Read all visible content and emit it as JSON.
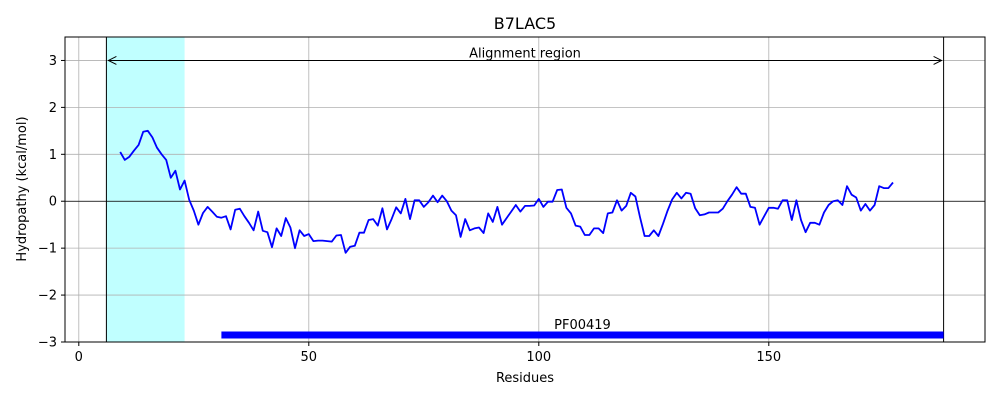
{
  "chart_data": {
    "type": "line",
    "title": "B7LAC5",
    "xlabel": "Residues",
    "ylabel": "Hydropathy (kcal/mol)",
    "xlim": [
      -3,
      197
    ],
    "ylim": [
      -3,
      3.5
    ],
    "xticks": [
      0,
      50,
      100,
      150
    ],
    "yticks": [
      -3,
      -2,
      -1,
      0,
      1,
      2,
      3
    ],
    "grid": true,
    "colors": {
      "line": "#0000ff",
      "highlight": "#c0ffff",
      "bar": "#0000ff",
      "grid": "#b0b0b0"
    },
    "highlight_region": {
      "x_start": 6,
      "x_end": 23
    },
    "alignment_region": {
      "label": "Alignment region",
      "x_start": 6,
      "x_end": 188,
      "y": 3
    },
    "domain_bar": {
      "label": "PF00419",
      "x_start": 31,
      "x_end": 188,
      "y": -2.85
    },
    "zero_line": 0,
    "series": [
      {
        "x": [
          9,
          10,
          11,
          12,
          13,
          14,
          15,
          16,
          17,
          18,
          19,
          20,
          21,
          22,
          23,
          24,
          25,
          26,
          27,
          28,
          29,
          30,
          31,
          32,
          33,
          34,
          35,
          36,
          37,
          38,
          39,
          40,
          41,
          42,
          43,
          44,
          45,
          46,
          47,
          48,
          49,
          50,
          51,
          52,
          53,
          54,
          55,
          56,
          57,
          58,
          59,
          60,
          61,
          62,
          63,
          64,
          65,
          66,
          67,
          68,
          69,
          70,
          71,
          72,
          73,
          74,
          75,
          76,
          77,
          78,
          79,
          80,
          81,
          82,
          83,
          84,
          85,
          86,
          87,
          88,
          89,
          90,
          91,
          92,
          93,
          94,
          95,
          96,
          97,
          98,
          99,
          100,
          101,
          102,
          103,
          104,
          105,
          106,
          107,
          108,
          109,
          110,
          111,
          112,
          113,
          114,
          115,
          116,
          117,
          118,
          119,
          120,
          121,
          122,
          123,
          124,
          125,
          126,
          127,
          128,
          129,
          130,
          131,
          132,
          133,
          134,
          135,
          136,
          137,
          138,
          139,
          140,
          141,
          142,
          143,
          144,
          145,
          146,
          147,
          148,
          149,
          150,
          151,
          152,
          153,
          154,
          155,
          156,
          157,
          158,
          159,
          160,
          161,
          162,
          163,
          164,
          165,
          166,
          167,
          168,
          169,
          170,
          171,
          172,
          173,
          174,
          175,
          176,
          177
        ],
        "y": [
          1.05,
          0.88,
          0.95,
          1.08,
          1.2,
          1.48,
          1.5,
          1.36,
          1.14,
          1.0,
          0.88,
          0.5,
          0.65,
          0.25,
          0.44,
          0.03,
          -0.2,
          -0.5,
          -0.25,
          -0.12,
          -0.22,
          -0.33,
          -0.35,
          -0.32,
          -0.6,
          -0.18,
          -0.16,
          -0.32,
          -0.46,
          -0.62,
          -0.22,
          -0.63,
          -0.66,
          -0.98,
          -0.58,
          -0.74,
          -0.36,
          -0.56,
          -1.0,
          -0.62,
          -0.74,
          -0.7,
          -0.85,
          -0.84,
          -0.84,
          -0.85,
          -0.86,
          -0.73,
          -0.72,
          -1.1,
          -0.97,
          -0.95,
          -0.67,
          -0.67,
          -0.4,
          -0.38,
          -0.52,
          -0.15,
          -0.6,
          -0.38,
          -0.13,
          -0.26,
          0.05,
          -0.38,
          0.02,
          0.02,
          -0.12,
          -0.02,
          0.12,
          -0.02,
          0.12,
          0.0,
          -0.2,
          -0.3,
          -0.76,
          -0.38,
          -0.62,
          -0.58,
          -0.56,
          -0.68,
          -0.26,
          -0.44,
          -0.12,
          -0.5,
          -0.36,
          -0.22,
          -0.08,
          -0.22,
          -0.1,
          -0.1,
          -0.09,
          0.05,
          -0.12,
          -0.01,
          -0.01,
          0.24,
          0.25,
          -0.14,
          -0.26,
          -0.52,
          -0.54,
          -0.72,
          -0.72,
          -0.58,
          -0.58,
          -0.68,
          -0.26,
          -0.24,
          0.02,
          -0.2,
          -0.1,
          0.18,
          0.1,
          -0.34,
          -0.74,
          -0.74,
          -0.62,
          -0.74,
          -0.48,
          -0.2,
          0.04,
          0.18,
          0.06,
          0.18,
          0.16,
          -0.15,
          -0.3,
          -0.28,
          -0.24,
          -0.24,
          -0.24,
          -0.16,
          0.0,
          0.14,
          0.3,
          0.16,
          0.16,
          -0.12,
          -0.14,
          -0.5,
          -0.32,
          -0.14,
          -0.14,
          -0.16,
          0.02,
          0.02,
          -0.4,
          0.02,
          -0.4,
          -0.66,
          -0.46,
          -0.46,
          -0.5,
          -0.24,
          -0.08,
          0.0,
          0.02,
          -0.08,
          0.32,
          0.14,
          0.08,
          -0.2,
          -0.06,
          -0.2,
          -0.08,
          0.32,
          0.28,
          0.28,
          0.4
        ]
      }
    ]
  }
}
